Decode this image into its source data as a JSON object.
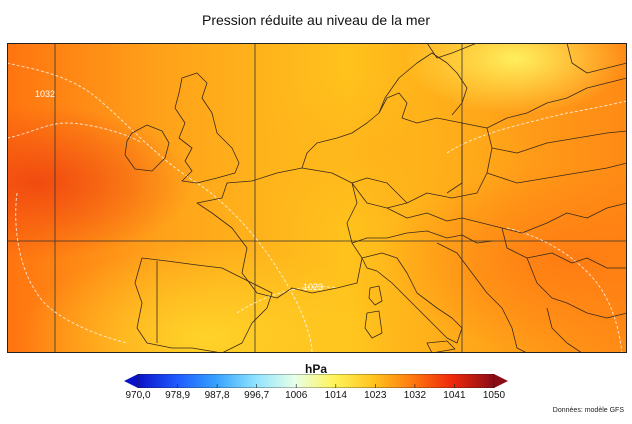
{
  "title": "Pression réduite au niveau de la mer",
  "unit": "hPa",
  "source": "Données: modèle GFS",
  "colorbar": {
    "ticks": [
      "970,0",
      "978,9",
      "987,8",
      "996,7",
      "1006",
      "1014",
      "1023",
      "1032",
      "1041",
      "1050"
    ],
    "colors": [
      "#0a12c8",
      "#1f5bff",
      "#37a2ff",
      "#8fe3ff",
      "#e6ffe8",
      "#fff45a",
      "#ffc41f",
      "#ff7a0f",
      "#ef2a0a",
      "#8a0c16"
    ]
  },
  "isobar_labels": [
    "1032",
    "1023"
  ]
}
